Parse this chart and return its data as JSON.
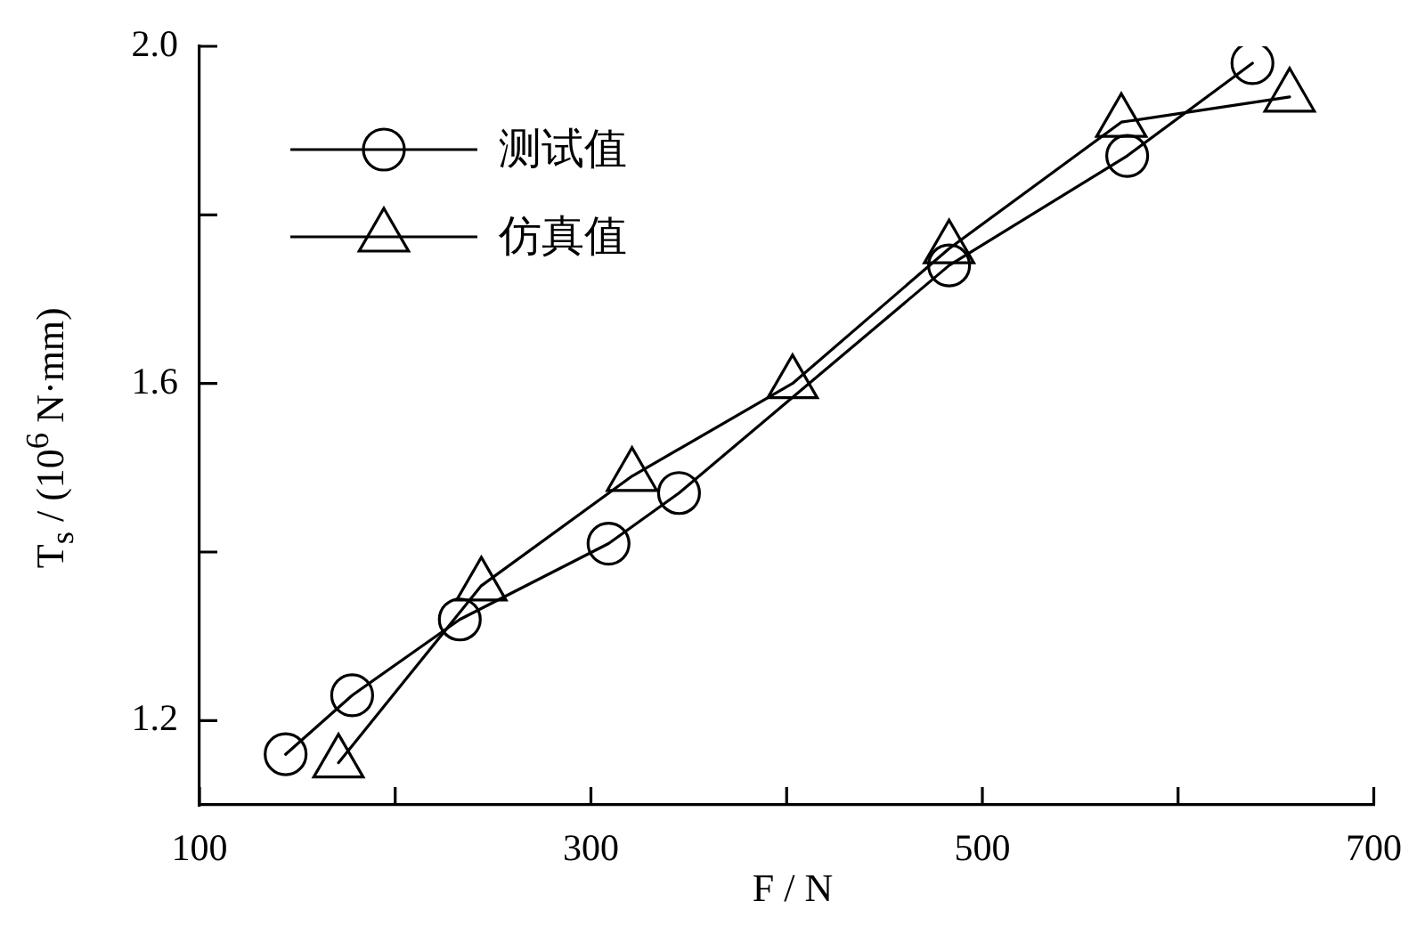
{
  "chart_data": {
    "type": "line",
    "xlabel": "F / N",
    "ylabel": "T$_{s}$ / (10$^{6}$ N·mm)",
    "xlim": [
      100,
      700
    ],
    "xticks": [
      100,
      {
        "value": 200,
        "label": null
      },
      300,
      {
        "value": 400,
        "label": null
      },
      500,
      {
        "value": 600,
        "label": null
      },
      700
    ],
    "ylim": [
      1.1,
      2.0
    ],
    "yticks": [
      1.2,
      {
        "value": 1.4,
        "label": null
      },
      1.6,
      {
        "value": 1.8,
        "label": null
      },
      {
        "value": 2,
        "label": "2.0"
      }
    ],
    "grid": false,
    "legend": "top left",
    "line_style": "solid",
    "series": [
      {
        "name": "测试值",
        "color": "#000000",
        "marker": "circle",
        "x": [
          144,
          178,
          233,
          309,
          345,
          483,
          574,
          638
        ],
        "values": [
          1.16,
          1.23,
          1.32,
          1.41,
          1.47,
          1.74,
          1.87,
          1.98
        ]
      },
      {
        "name": "仿真值",
        "color": "#000000",
        "marker": "triangle",
        "x": [
          171,
          244,
          321,
          403,
          483,
          571,
          657
        ],
        "values": [
          1.15,
          1.36,
          1.49,
          1.6,
          1.76,
          1.91,
          1.94
        ]
      }
    ]
  }
}
